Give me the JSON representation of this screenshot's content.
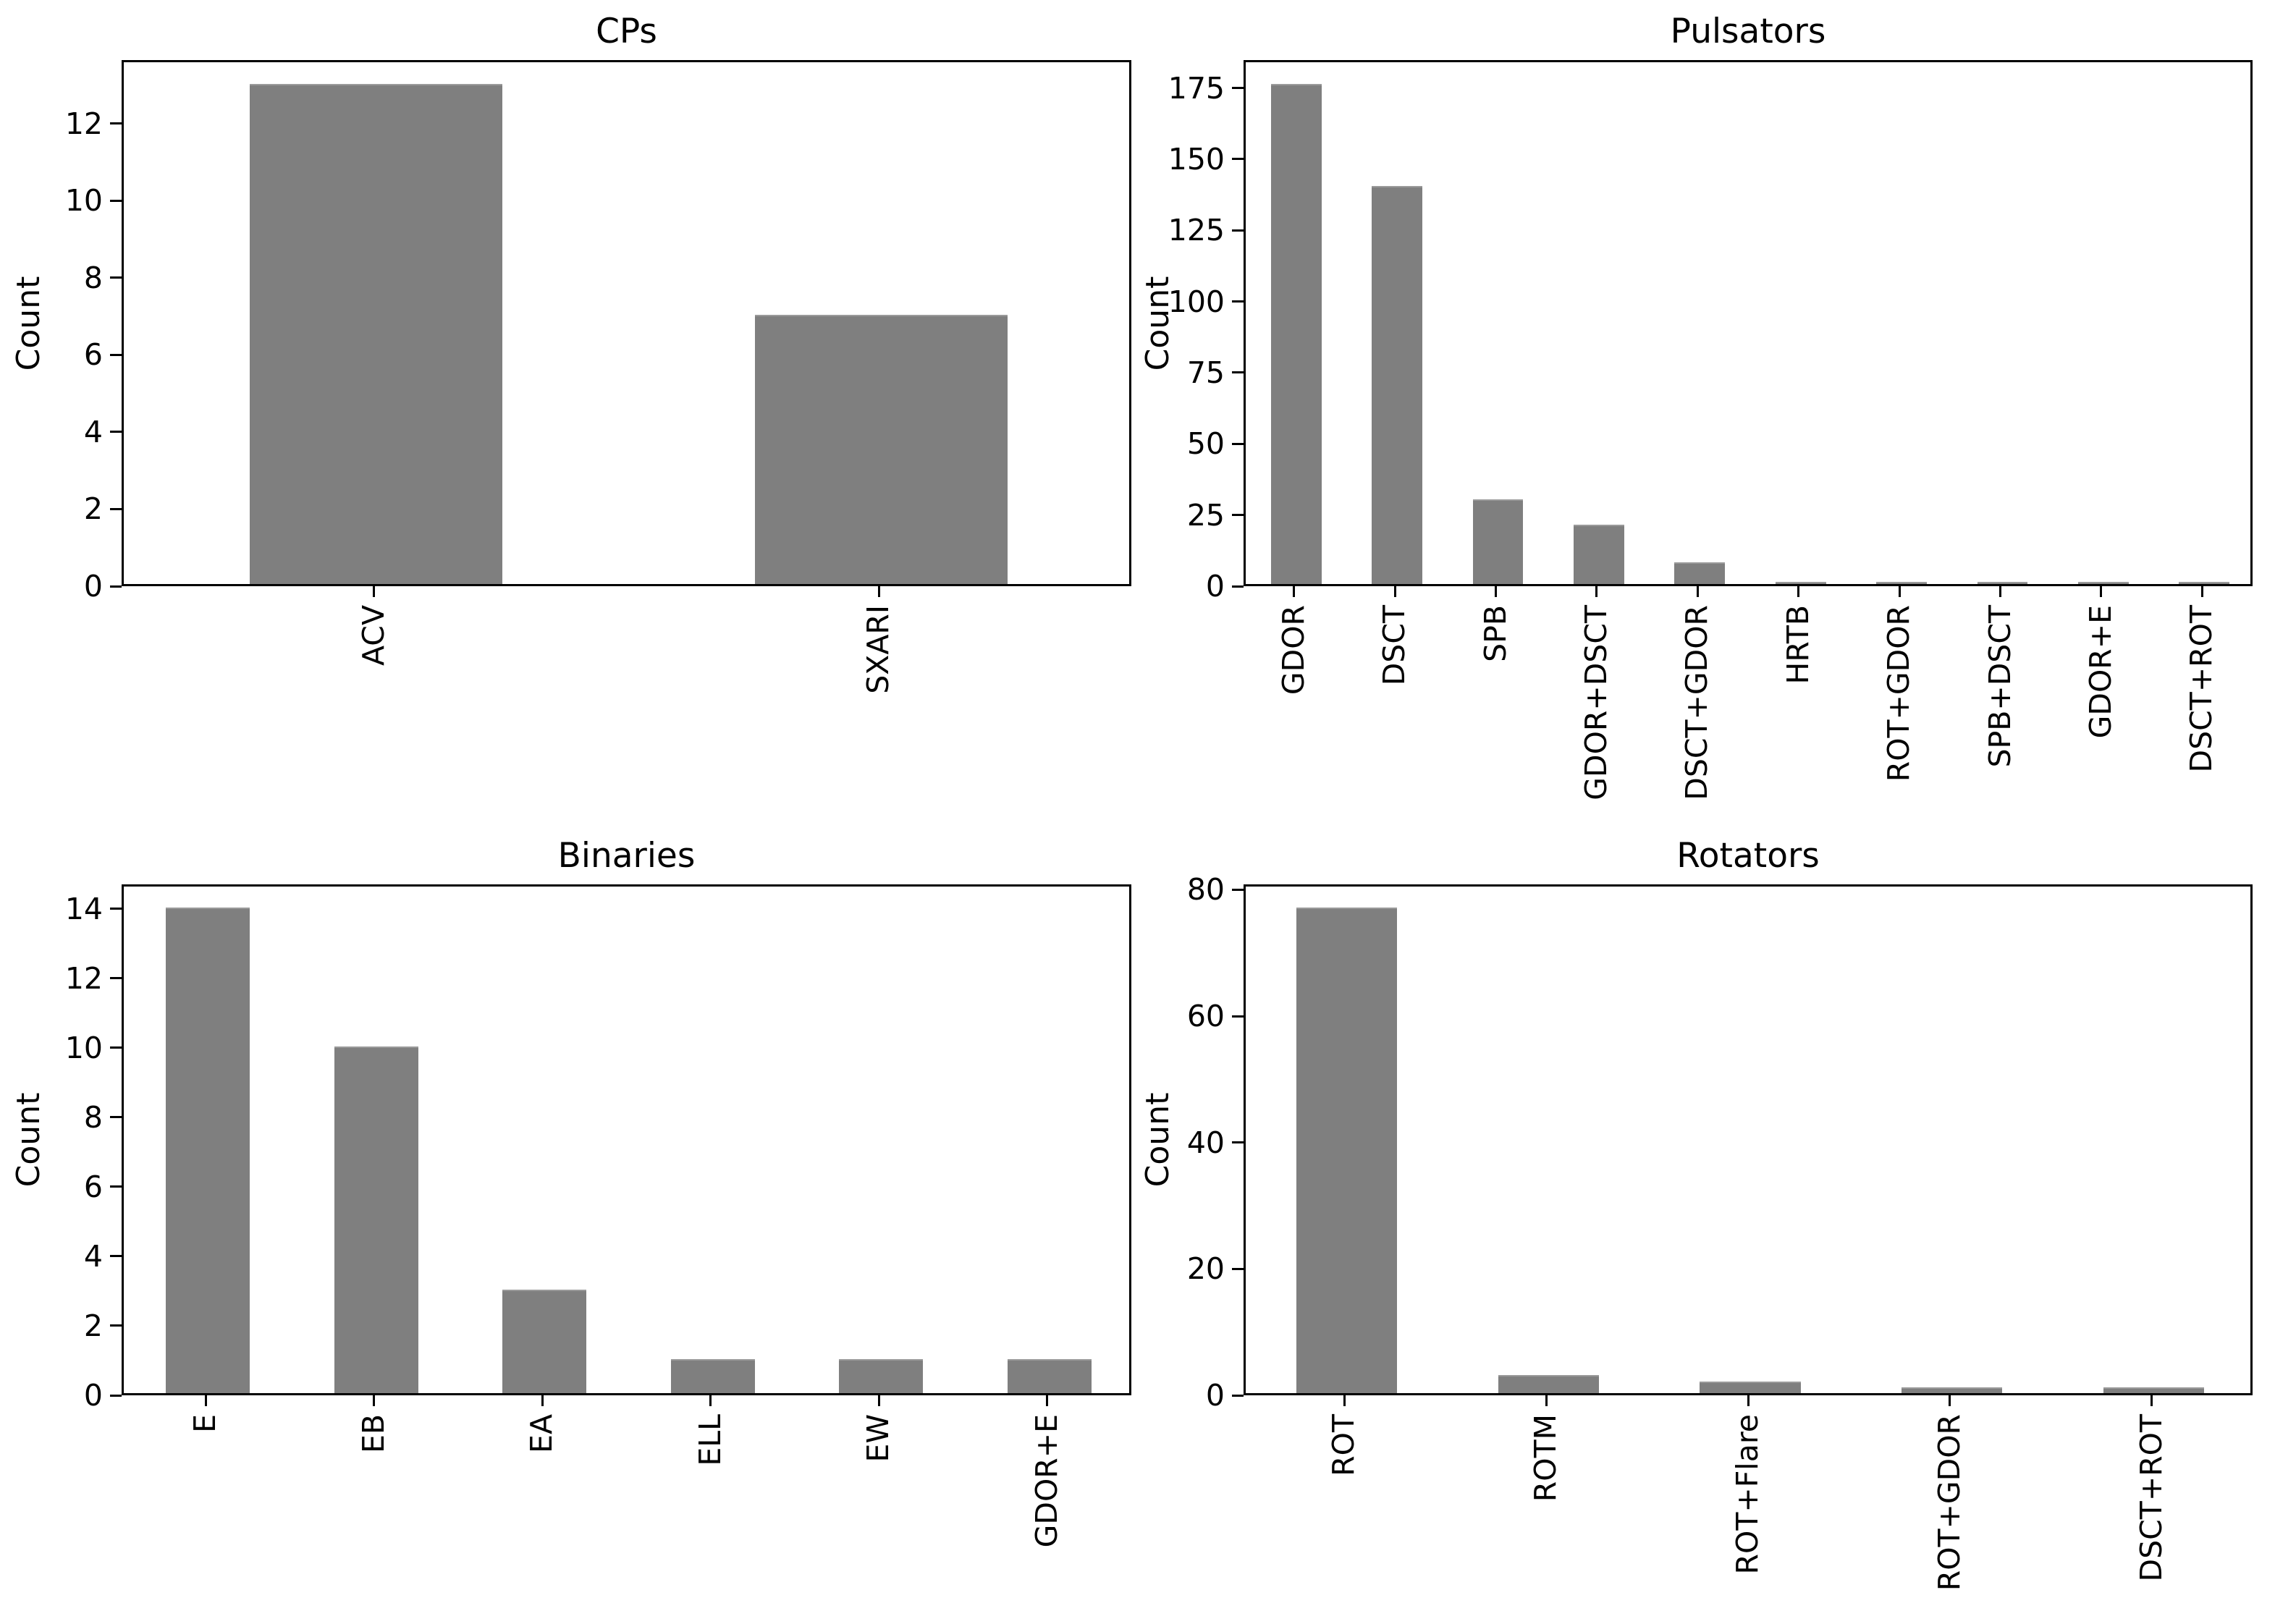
{
  "figure": {
    "background": "#ffffff",
    "bar_color": "#7f7f7f",
    "bar_edge_color": "#9a9a9a",
    "text_color": "#000000"
  },
  "chart_data": [
    {
      "type": "bar",
      "title": "CPs",
      "ylabel": "Count",
      "xlabel": "",
      "categories": [
        "ACV",
        "SXARI"
      ],
      "values": [
        13,
        7
      ],
      "yticks": [
        0,
        2,
        4,
        6,
        8,
        10,
        12
      ],
      "ylim": [
        0,
        13.65
      ],
      "grid": false,
      "legend": "none"
    },
    {
      "type": "bar",
      "title": "Pulsators",
      "ylabel": "Count",
      "xlabel": "",
      "categories": [
        "GDOR",
        "DSCT",
        "SPB",
        "GDOR+DSCT",
        "DSCT+GDOR",
        "HRTB",
        "ROT+GDOR",
        "SPB+DSCT",
        "GDOR+E",
        "DSCT+ROT"
      ],
      "values": [
        176,
        140,
        30,
        21,
        8,
        1,
        1,
        1,
        1,
        1
      ],
      "yticks": [
        0,
        25,
        50,
        75,
        100,
        125,
        150,
        175
      ],
      "ylim": [
        0,
        184.8
      ],
      "grid": false,
      "legend": "none"
    },
    {
      "type": "bar",
      "title": "Binaries",
      "ylabel": "Count",
      "xlabel": "",
      "categories": [
        "E",
        "EB",
        "EA",
        "ELL",
        "EW",
        "GDOR+E"
      ],
      "values": [
        14,
        10,
        3,
        1,
        1,
        1
      ],
      "yticks": [
        0,
        2,
        4,
        6,
        8,
        10,
        12,
        14
      ],
      "ylim": [
        0,
        14.7
      ],
      "grid": false,
      "legend": "none"
    },
    {
      "type": "bar",
      "title": "Rotators",
      "ylabel": "Count",
      "xlabel": "",
      "categories": [
        "ROT",
        "ROTM",
        "ROT+Flare",
        "ROT+GDOR",
        "DSCT+ROT"
      ],
      "values": [
        77,
        3,
        2,
        1,
        1
      ],
      "yticks": [
        0,
        20,
        40,
        60,
        80
      ],
      "ylim": [
        0,
        80.85
      ],
      "grid": false,
      "legend": "none"
    }
  ]
}
